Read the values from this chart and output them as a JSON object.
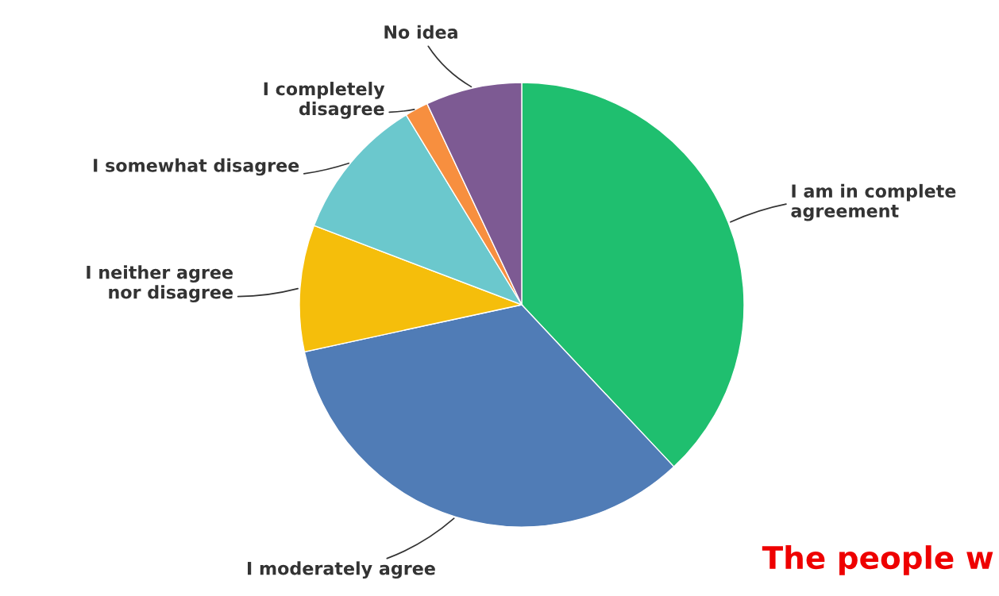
{
  "chart_data": {
    "type": "pie",
    "categories": [
      "I am in complete\nagreement",
      "I moderately agree",
      "I neither agree\nnor disagree",
      "I somewhat disagree",
      "I completely\ndisagree",
      "No idea"
    ],
    "values": [
      38,
      33.6,
      9.2,
      10.5,
      1.7,
      7
    ],
    "colors": [
      "#1fbf6f",
      "#507cb6",
      "#f5be0b",
      "#6bc8cd",
      "#f78f3f",
      "#7d5a93"
    ],
    "annotations": [
      "The people w"
    ]
  }
}
